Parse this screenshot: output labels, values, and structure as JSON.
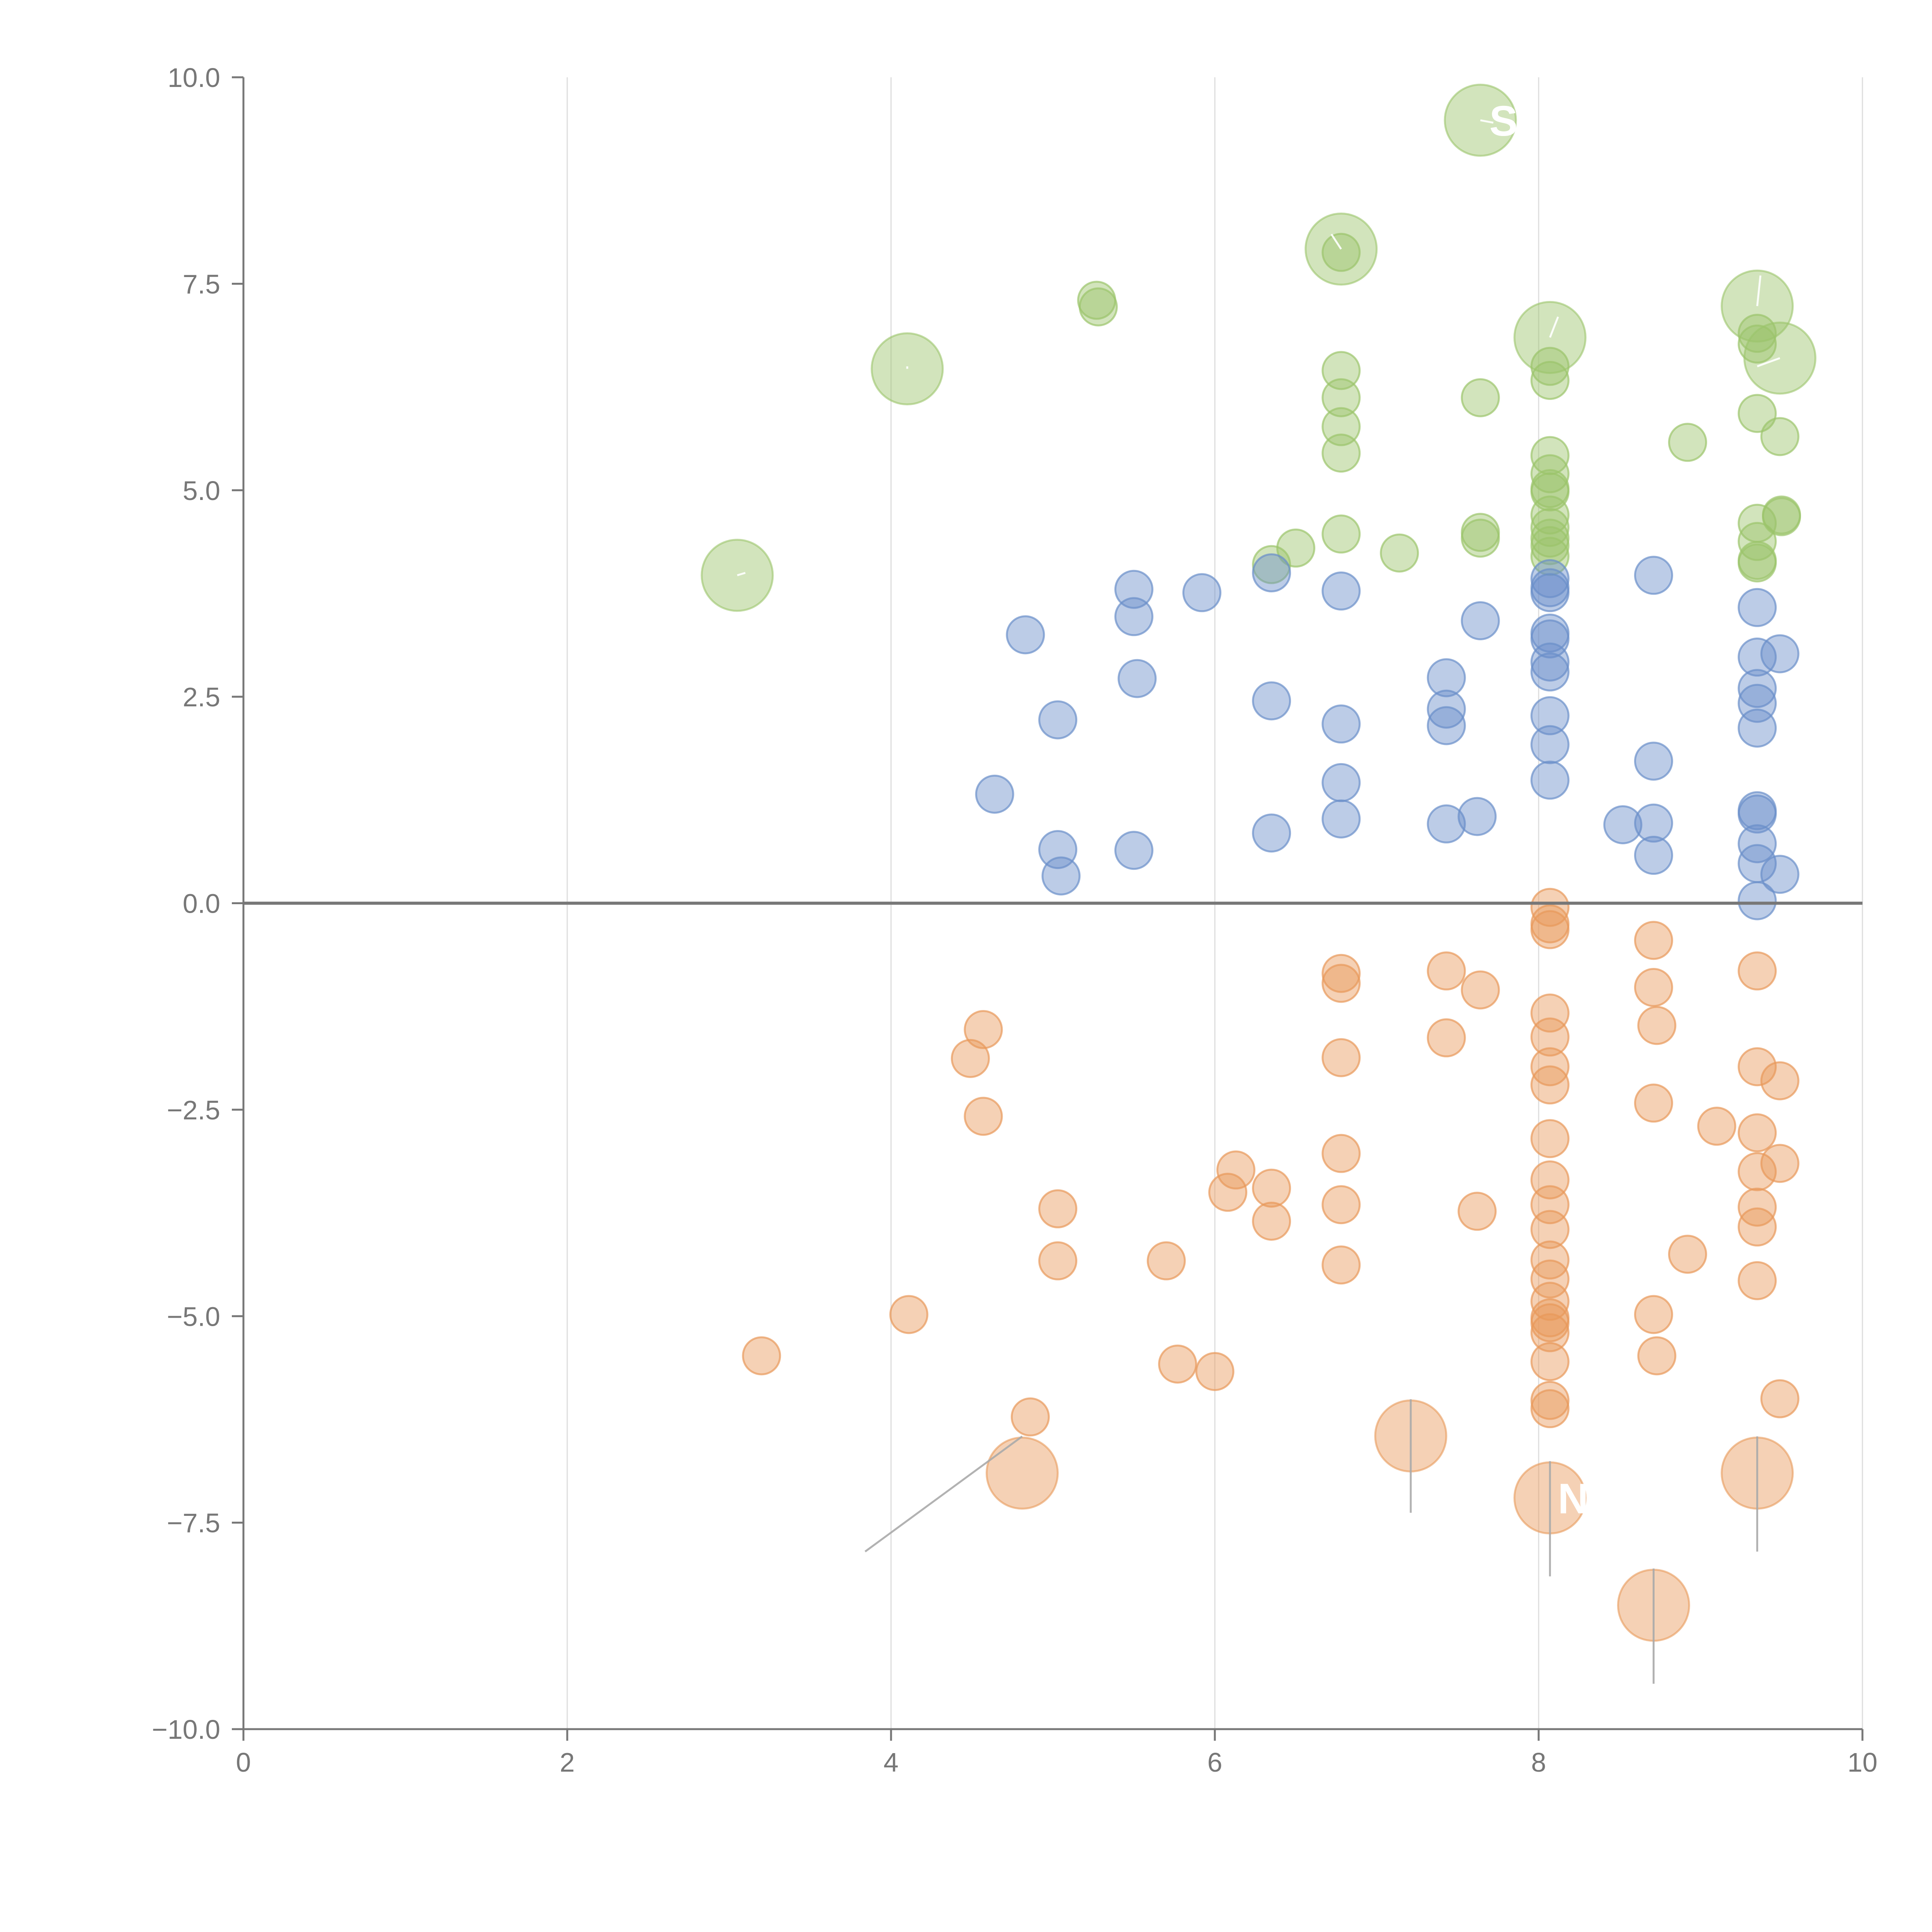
{
  "chart_data": {
    "type": "scatter",
    "title": "",
    "xlabel": "",
    "ylabel": "",
    "xlim": [
      0,
      10
    ],
    "ylim": [
      -10,
      10
    ],
    "grid": "vertical",
    "zero_line": 0,
    "x_ticks": [
      "0",
      "2",
      "4",
      "6",
      "8",
      "10"
    ],
    "y_ticks": [
      "10.0",
      "7.5",
      "5.0",
      "2.5",
      "0.0",
      "−2.5",
      "−5.0",
      "−7.5",
      "−10.0"
    ],
    "colors": {
      "green": "#9bc46b",
      "blue": "#6a8fc9",
      "orange": "#e8995a",
      "axis": "#777777",
      "grid": "#dddddd",
      "zero_line": "#777777",
      "annotation_line": "#aaaaaa"
    },
    "series": [
      {
        "name": "green",
        "points": [
          [
            5.27,
            7.3
          ],
          [
            5.28,
            7.22
          ],
          [
            6.5,
            4.3
          ],
          [
            6.35,
            4.1
          ],
          [
            6.78,
            6.45
          ],
          [
            6.78,
            6.12
          ],
          [
            6.78,
            5.77
          ],
          [
            6.78,
            5.45
          ],
          [
            6.78,
            4.47
          ],
          [
            6.78,
            7.88
          ],
          [
            7.14,
            4.24
          ],
          [
            7.64,
            6.12
          ],
          [
            7.64,
            4.49
          ],
          [
            7.64,
            4.42
          ],
          [
            8.07,
            6.5
          ],
          [
            8.07,
            6.33
          ],
          [
            8.07,
            5.42
          ],
          [
            8.07,
            5.2
          ],
          [
            8.07,
            5.02
          ],
          [
            8.07,
            4.98
          ],
          [
            8.07,
            4.7
          ],
          [
            8.07,
            4.55
          ],
          [
            8.07,
            4.42
          ],
          [
            8.07,
            4.33
          ],
          [
            8.07,
            4.2
          ],
          [
            8.92,
            5.58
          ],
          [
            9.35,
            6.9
          ],
          [
            9.35,
            6.77
          ],
          [
            9.35,
            5.93
          ],
          [
            9.35,
            4.6
          ],
          [
            9.35,
            4.38
          ],
          [
            9.35,
            4.15
          ],
          [
            9.35,
            4.12
          ],
          [
            9.49,
            5.65
          ],
          [
            9.5,
            4.7
          ],
          [
            9.5,
            4.68
          ]
        ]
      },
      {
        "name": "blue",
        "points": [
          [
            4.64,
            1.32
          ],
          [
            4.83,
            3.25
          ],
          [
            5.03,
            2.22
          ],
          [
            5.03,
            0.65
          ],
          [
            5.05,
            0.33
          ],
          [
            5.5,
            3.8
          ],
          [
            5.5,
            3.47
          ],
          [
            5.52,
            2.72
          ],
          [
            5.5,
            0.64
          ],
          [
            5.92,
            3.76
          ],
          [
            6.35,
            4.0
          ],
          [
            6.35,
            2.45
          ],
          [
            6.35,
            0.85
          ],
          [
            6.78,
            3.78
          ],
          [
            6.78,
            2.17
          ],
          [
            6.78,
            1.46
          ],
          [
            6.78,
            1.02
          ],
          [
            7.43,
            2.73
          ],
          [
            7.43,
            2.35
          ],
          [
            7.43,
            2.15
          ],
          [
            7.43,
            0.96
          ],
          [
            7.62,
            1.05
          ],
          [
            7.64,
            3.42
          ],
          [
            8.07,
            3.93
          ],
          [
            8.07,
            3.82
          ],
          [
            8.07,
            3.76
          ],
          [
            8.07,
            3.27
          ],
          [
            8.07,
            3.2
          ],
          [
            8.07,
            2.92
          ],
          [
            8.07,
            2.8
          ],
          [
            8.07,
            2.27
          ],
          [
            8.07,
            1.92
          ],
          [
            8.07,
            1.49
          ],
          [
            8.52,
            0.95
          ],
          [
            8.71,
            3.97
          ],
          [
            8.71,
            1.72
          ],
          [
            8.71,
            0.97
          ],
          [
            8.71,
            0.58
          ],
          [
            9.35,
            3.58
          ],
          [
            9.35,
            2.98
          ],
          [
            9.35,
            2.6
          ],
          [
            9.35,
            2.42
          ],
          [
            9.35,
            2.12
          ],
          [
            9.35,
            1.12
          ],
          [
            9.35,
            1.08
          ],
          [
            9.35,
            0.72
          ],
          [
            9.35,
            0.48
          ],
          [
            9.35,
            0.03
          ],
          [
            9.49,
            3.02
          ],
          [
            9.49,
            0.35
          ]
        ]
      },
      {
        "name": "orange",
        "points": [
          [
            3.2,
            -5.48
          ],
          [
            4.11,
            -4.98
          ],
          [
            4.49,
            -1.88
          ],
          [
            4.57,
            -1.53
          ],
          [
            4.57,
            -2.58
          ],
          [
            4.86,
            -6.22
          ],
          [
            5.03,
            -3.7
          ],
          [
            5.03,
            -4.33
          ],
          [
            5.7,
            -4.33
          ],
          [
            5.77,
            -5.58
          ],
          [
            6.0,
            -5.67
          ],
          [
            6.08,
            -3.5
          ],
          [
            6.13,
            -3.23
          ],
          [
            6.35,
            -3.45
          ],
          [
            6.35,
            -3.85
          ],
          [
            6.78,
            -0.85
          ],
          [
            6.78,
            -0.97
          ],
          [
            6.78,
            -1.87
          ],
          [
            6.78,
            -3.03
          ],
          [
            6.78,
            -3.65
          ],
          [
            6.78,
            -4.38
          ],
          [
            7.43,
            -0.82
          ],
          [
            7.43,
            -1.63
          ],
          [
            7.62,
            -3.73
          ],
          [
            7.64,
            -1.05
          ],
          [
            8.07,
            -0.05
          ],
          [
            8.07,
            -0.25
          ],
          [
            8.07,
            -0.32
          ],
          [
            8.07,
            -1.33
          ],
          [
            8.07,
            -1.62
          ],
          [
            8.07,
            -1.98
          ],
          [
            8.07,
            -2.2
          ],
          [
            8.07,
            -2.85
          ],
          [
            8.07,
            -3.35
          ],
          [
            8.07,
            -3.65
          ],
          [
            8.07,
            -3.95
          ],
          [
            8.07,
            -4.32
          ],
          [
            8.07,
            -4.55
          ],
          [
            8.07,
            -4.82
          ],
          [
            8.07,
            -5.02
          ],
          [
            8.07,
            -5.08
          ],
          [
            8.07,
            -5.2
          ],
          [
            8.07,
            -5.55
          ],
          [
            8.07,
            -6.02
          ],
          [
            8.07,
            -6.12
          ],
          [
            8.71,
            -0.45
          ],
          [
            8.71,
            -1.02
          ],
          [
            8.71,
            -2.42
          ],
          [
            8.71,
            -4.98
          ],
          [
            8.73,
            -1.48
          ],
          [
            8.73,
            -5.48
          ],
          [
            8.92,
            -4.25
          ],
          [
            9.1,
            -2.7
          ],
          [
            9.35,
            -0.82
          ],
          [
            9.35,
            -1.98
          ],
          [
            9.35,
            -2.78
          ],
          [
            9.35,
            -3.25
          ],
          [
            9.35,
            -3.68
          ],
          [
            9.35,
            -3.92
          ],
          [
            9.35,
            -4.57
          ],
          [
            9.49,
            -2.15
          ],
          [
            9.49,
            -3.15
          ],
          [
            9.49,
            -6.0
          ]
        ]
      }
    ],
    "highlights": [
      {
        "series": "green",
        "point": [
          3.05,
          3.97
        ],
        "label": "",
        "line_end": [
          3.1,
          4.0
        ]
      },
      {
        "series": "green",
        "point": [
          4.1,
          6.47
        ],
        "label": "",
        "line_end": [
          4.1,
          6.5
        ]
      },
      {
        "series": "green",
        "point": [
          6.78,
          7.92
        ],
        "label": "",
        "line_end": [
          6.72,
          8.1
        ]
      },
      {
        "series": "green",
        "point": [
          7.64,
          9.48
        ],
        "label": "S",
        "line_end": [
          7.72,
          9.45
        ]
      },
      {
        "series": "green",
        "point": [
          8.07,
          6.85
        ],
        "label": "",
        "line_end": [
          8.12,
          7.1
        ]
      },
      {
        "series": "green",
        "point": [
          9.35,
          7.23
        ],
        "label": "",
        "line_end": [
          9.37,
          7.6
        ]
      },
      {
        "series": "green",
        "point": [
          9.49,
          6.6
        ],
        "label": "",
        "line_end": [
          9.35,
          6.5
        ]
      },
      {
        "series": "orange",
        "point": [
          4.81,
          -6.9
        ],
        "label": "",
        "line_end": [
          3.84,
          -7.85
        ]
      },
      {
        "series": "orange",
        "point": [
          7.21,
          -6.45
        ],
        "label": "",
        "line_end": [
          7.21,
          -7.38
        ]
      },
      {
        "series": "orange",
        "point": [
          8.07,
          -7.2
        ],
        "label": "N",
        "line_end": [
          8.07,
          -8.15
        ]
      },
      {
        "series": "orange",
        "point": [
          8.71,
          -8.5
        ],
        "label": "",
        "line_end": [
          8.71,
          -9.45
        ]
      },
      {
        "series": "orange",
        "point": [
          9.35,
          -6.9
        ],
        "label": "",
        "line_end": [
          9.35,
          -7.85
        ]
      }
    ]
  }
}
